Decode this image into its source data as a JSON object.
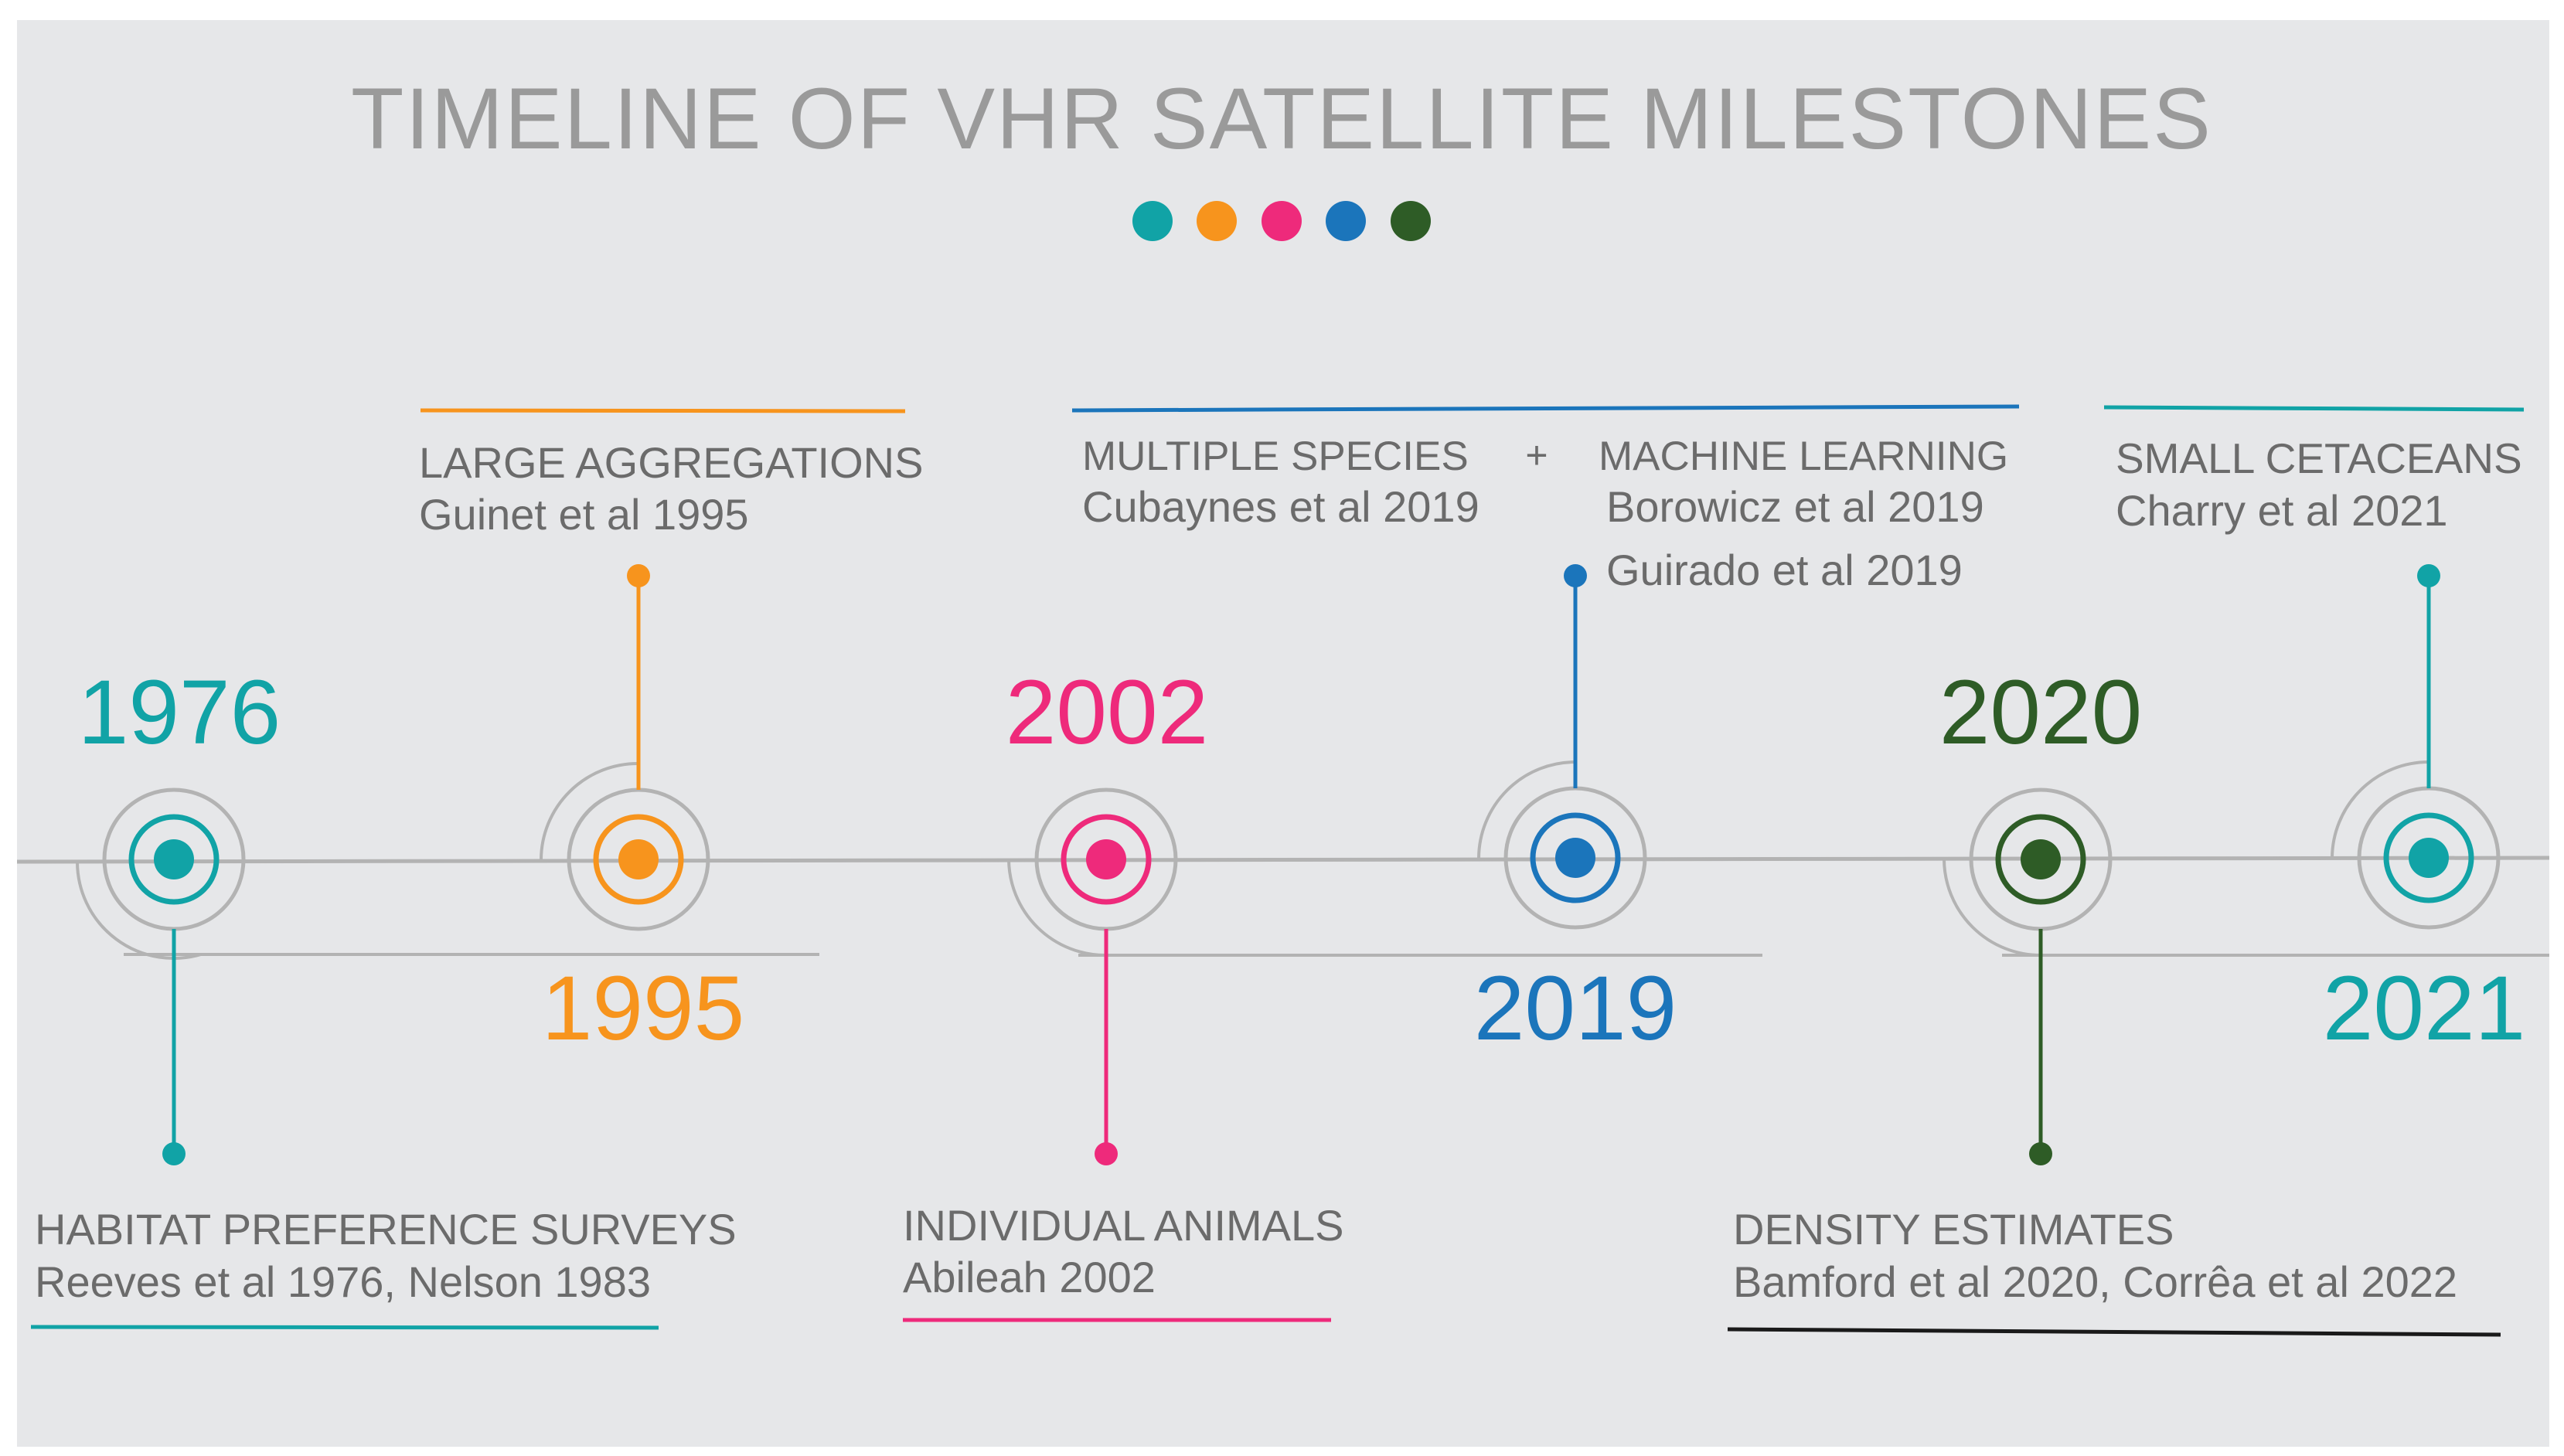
{
  "title": "TIMELINE OF VHR SATELLITE MILESTONES",
  "colors": {
    "background": "#e6e7e9",
    "axis": "#b3b3b3",
    "title": "#9a9a9a",
    "label": "#6b6b6b",
    "teal": "#11a3a6",
    "orange": "#f7941d",
    "pink": "#ee2a7b",
    "blue": "#1b75bb",
    "darkgreen": "#2e5c26",
    "black": "#1a1a1a"
  },
  "legend_dots": [
    "teal",
    "orange",
    "pink",
    "blue",
    "darkgreen"
  ],
  "milestones": [
    {
      "year": "1976",
      "color": "teal",
      "label": "HABITAT PREFERENCE SURVEYS",
      "reference": "Reeves et al 1976, Nelson 1983"
    },
    {
      "year": "1995",
      "color": "orange",
      "label": "LARGE AGGREGATIONS",
      "reference": "Guinet et al 1995"
    },
    {
      "year": "2002",
      "color": "pink",
      "label": "INDIVIDUAL ANIMALS",
      "reference": "Abileah 2002"
    },
    {
      "year": "2019",
      "color": "blue",
      "label": "MULTIPLE SPECIES",
      "reference": "Cubaynes et al 2019",
      "connector": "+",
      "label_2": "MACHINE LEARNING",
      "reference_2": "Borowicz et al 2019",
      "reference_3": "Guirado et al 2019"
    },
    {
      "year": "2020",
      "color": "darkgreen",
      "label": "DENSITY ESTIMATES",
      "reference": "Bamford et al 2020, Corrêa et al 2022"
    },
    {
      "year": "2021",
      "color": "teal",
      "label": "SMALL CETACEANS",
      "reference": "Charry et al 2021"
    }
  ]
}
